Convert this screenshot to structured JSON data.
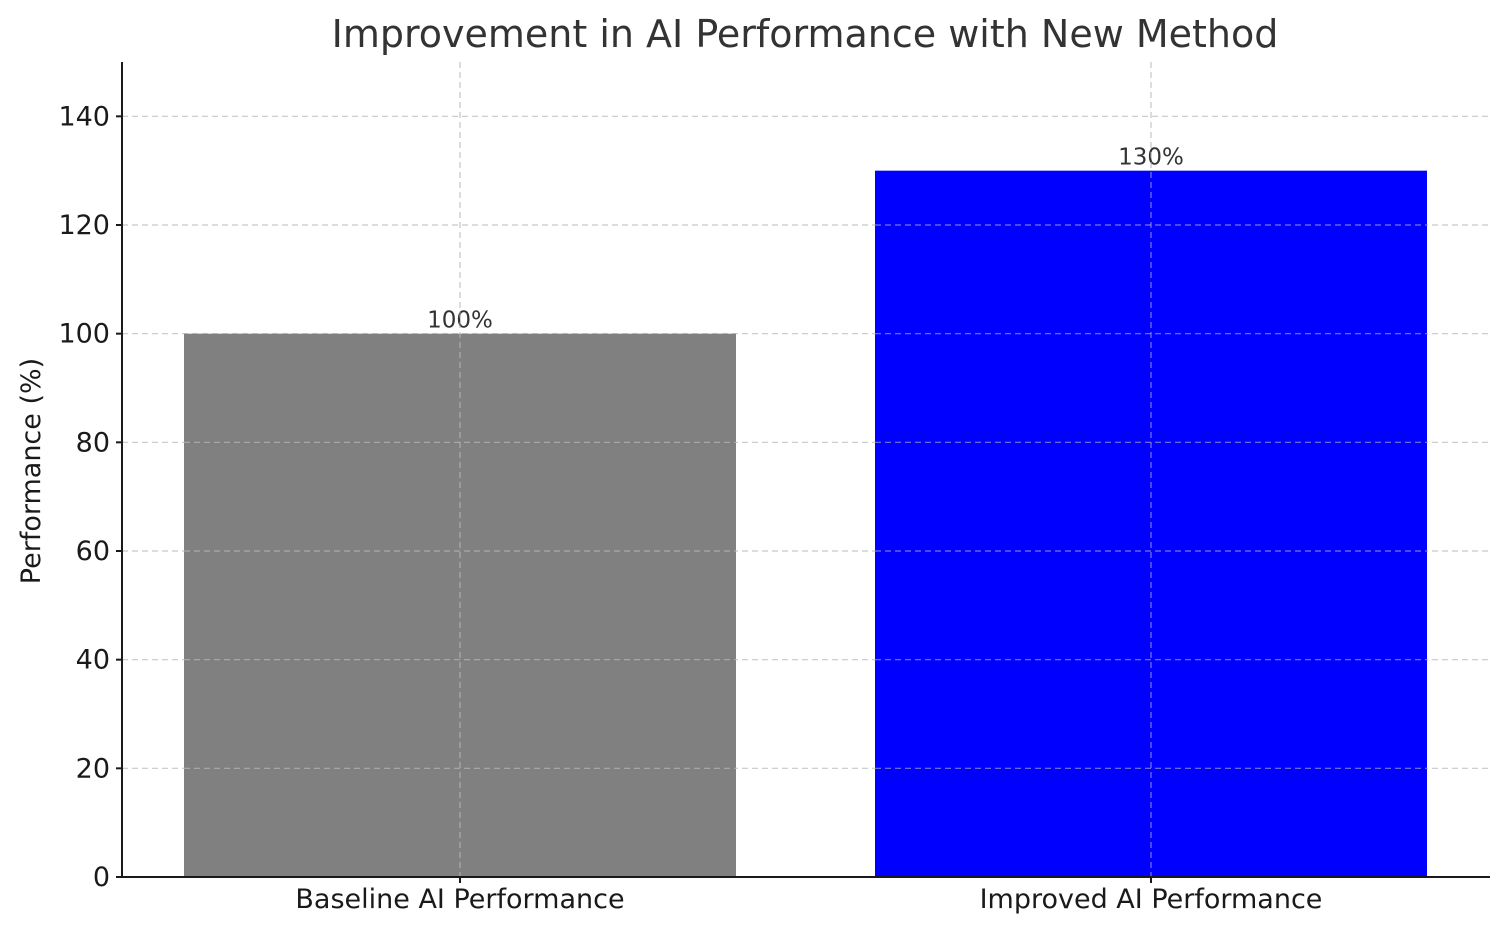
{
  "chart_data": {
    "type": "bar",
    "title": "Improvement in AI Performance with New Method",
    "xlabel": "",
    "ylabel": "Performance (%)",
    "categories": [
      "Baseline AI Performance",
      "Improved AI Performance"
    ],
    "values": [
      100,
      130
    ],
    "value_labels": [
      "100%",
      "130%"
    ],
    "colors": [
      "#808080",
      "#0000ff"
    ],
    "ylim": [
      0,
      150
    ],
    "yticks": [
      0,
      20,
      40,
      60,
      80,
      100,
      120,
      140
    ],
    "grid": true
  }
}
